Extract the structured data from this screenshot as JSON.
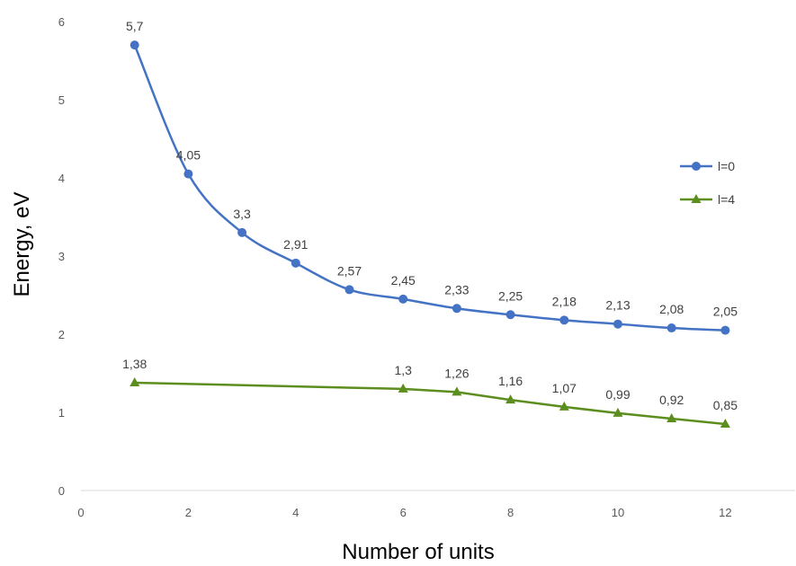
{
  "chart_data": {
    "type": "line",
    "title": "",
    "xlabel": "Number of units",
    "ylabel": "Energy, eV",
    "xlim": [
      0,
      13.3
    ],
    "ylim": [
      0,
      6
    ],
    "x_ticks": [
      0,
      2,
      4,
      6,
      8,
      10,
      12
    ],
    "y_ticks": [
      0,
      1,
      2,
      3,
      4,
      5,
      6
    ],
    "grid": false,
    "legend_position": "right",
    "series": [
      {
        "name": "l=0",
        "color": "#4472C4",
        "marker": "circle",
        "smooth": true,
        "x": [
          1,
          2,
          3,
          4,
          5,
          6,
          7,
          8,
          9,
          10,
          11,
          12
        ],
        "y": [
          5.7,
          4.05,
          3.3,
          2.91,
          2.57,
          2.45,
          2.33,
          2.25,
          2.18,
          2.13,
          2.08,
          2.05
        ],
        "labels": [
          "5,7",
          "4,05",
          "3,3",
          "2,91",
          "2,57",
          "2,45",
          "2,33",
          "2,25",
          "2,18",
          "2,13",
          "2,08",
          "2,05"
        ]
      },
      {
        "name": "l=4",
        "color": "#5B8E1E",
        "marker": "triangle",
        "smooth": false,
        "x": [
          1,
          6,
          7,
          8,
          9,
          10,
          11,
          12
        ],
        "y": [
          1.38,
          1.3,
          1.26,
          1.16,
          1.07,
          0.99,
          0.92,
          0.85
        ],
        "labels": [
          "1,38",
          "1,3",
          "1,26",
          "1,16",
          "1,07",
          "0,99",
          "0,92",
          "0,85"
        ]
      }
    ]
  }
}
